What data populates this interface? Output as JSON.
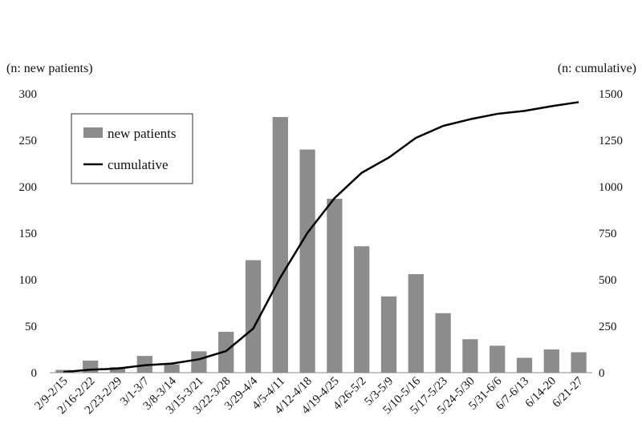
{
  "chart_data": {
    "type": "bar",
    "title": "",
    "y_left_label": "(n: new patients)",
    "y_right_label": "(n: cumulative)",
    "ylim_left": [
      0,
      300
    ],
    "ylim_right": [
      0,
      1500
    ],
    "y_left_ticks": [
      0,
      50,
      100,
      150,
      200,
      250,
      300
    ],
    "y_right_ticks": [
      0,
      250,
      500,
      750,
      1000,
      1250,
      1500
    ],
    "grid": false,
    "legend_position": "top-left",
    "categories": [
      "2/9-2/15",
      "2/16-2/22",
      "2/23-2/29",
      "3/1-3/7",
      "3/8-3/14",
      "3/15-3/21",
      "3/22-3/28",
      "3/29-4/4",
      "4/5-4/11",
      "4/12-4/18",
      "4/19-4/25",
      "4/26-5/2",
      "5/3-5/9",
      "5/10-5/16",
      "5/17-5/23",
      "5/24-5/30",
      "5/31-6/6",
      "6/7-6/13",
      "6/14-20",
      "6/21-27"
    ],
    "series": [
      {
        "name": "new patients",
        "kind": "bar",
        "axis": "left",
        "color": "#8c8c8c",
        "values": [
          3,
          13,
          6,
          18,
          9,
          23,
          44,
          121,
          275,
          240,
          187,
          136,
          82,
          106,
          64,
          36,
          29,
          16,
          25,
          22
        ]
      },
      {
        "name": "cumulative",
        "kind": "line",
        "axis": "right",
        "color": "#000000",
        "values": [
          3,
          16,
          22,
          40,
          49,
          72,
          116,
          237,
          512,
          752,
          939,
          1075,
          1157,
          1263,
          1327,
          1363,
          1392,
          1408,
          1433,
          1455
        ]
      }
    ]
  }
}
